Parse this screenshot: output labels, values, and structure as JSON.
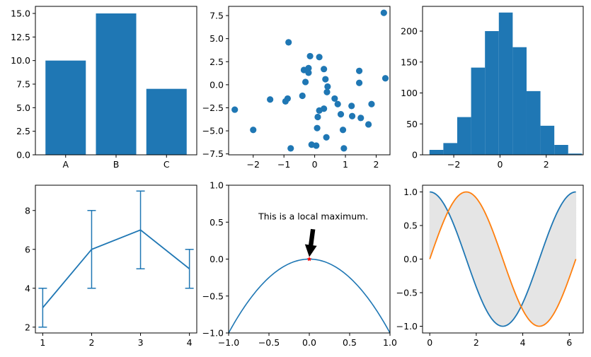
{
  "colors": {
    "blue": "#1f77b4",
    "orange": "#ff7f0e",
    "fill_gray": "#e5e5e5",
    "red": "#ff0000",
    "black": "#000000"
  },
  "chart_data": [
    {
      "type": "bar",
      "categories": [
        "A",
        "B",
        "C"
      ],
      "values": [
        10,
        15,
        7
      ],
      "ylim": [
        0,
        15.75
      ],
      "yticks": [
        "0.0",
        "2.5",
        "5.0",
        "7.5",
        "10.0",
        "12.5",
        "15.0"
      ]
    },
    {
      "type": "scatter",
      "xlim": [
        -2.8,
        2.45
      ],
      "ylim": [
        -7.6,
        8.5
      ],
      "xticks": [
        "−2",
        "−1",
        "0",
        "1",
        "2"
      ],
      "yticks": [
        "−7.5",
        "−5.0",
        "−2.5",
        "0.0",
        "2.5",
        "5.0",
        "7.5"
      ],
      "points": [
        [
          -2.6,
          -2.7
        ],
        [
          -2.0,
          -4.9
        ],
        [
          -1.45,
          -1.6
        ],
        [
          -0.95,
          -1.8
        ],
        [
          -0.88,
          -1.5
        ],
        [
          -0.85,
          4.6
        ],
        [
          -0.78,
          -6.9
        ],
        [
          -0.4,
          -1.2
        ],
        [
          -0.35,
          1.6
        ],
        [
          -0.3,
          0.3
        ],
        [
          -0.2,
          1.3
        ],
        [
          -0.2,
          1.8
        ],
        [
          -0.15,
          3.1
        ],
        [
          -0.1,
          -6.5
        ],
        [
          0.05,
          -6.6
        ],
        [
          0.08,
          -4.7
        ],
        [
          0.1,
          -3.5
        ],
        [
          0.15,
          3.0
        ],
        [
          0.15,
          -2.8
        ],
        [
          0.3,
          -2.6
        ],
        [
          0.3,
          1.7
        ],
        [
          0.35,
          0.6
        ],
        [
          0.38,
          -5.7
        ],
        [
          0.4,
          -0.8
        ],
        [
          0.42,
          -0.2
        ],
        [
          0.65,
          -1.5
        ],
        [
          0.75,
          -2.1
        ],
        [
          0.85,
          -3.2
        ],
        [
          0.92,
          -4.9
        ],
        [
          0.95,
          -6.9
        ],
        [
          1.2,
          -2.3
        ],
        [
          1.22,
          -3.4
        ],
        [
          1.45,
          1.5
        ],
        [
          1.45,
          0.2
        ],
        [
          1.5,
          -3.6
        ],
        [
          1.75,
          -4.3
        ],
        [
          1.85,
          -2.1
        ],
        [
          2.25,
          7.8
        ],
        [
          2.3,
          0.7
        ]
      ]
    },
    {
      "type": "histogram",
      "xlim": [
        -3.35,
        3.6
      ],
      "ylim": [
        0,
        240
      ],
      "xticks": [
        "−2",
        "0",
        "2"
      ],
      "yticks": [
        "0",
        "50",
        "100",
        "150",
        "200"
      ],
      "bins": [
        [
          -3.05,
          -2.45,
          8
        ],
        [
          -2.45,
          -1.85,
          19
        ],
        [
          -1.85,
          -1.25,
          61
        ],
        [
          -1.25,
          -0.65,
          141
        ],
        [
          -0.65,
          -0.05,
          200
        ],
        [
          -0.05,
          0.55,
          230
        ],
        [
          0.55,
          1.15,
          174
        ],
        [
          1.15,
          1.75,
          103
        ],
        [
          1.75,
          2.35,
          47
        ],
        [
          2.35,
          2.95,
          16
        ],
        [
          2.95,
          3.55,
          2
        ]
      ]
    },
    {
      "type": "line",
      "subtype": "errorbar",
      "x": [
        1,
        2,
        3,
        4
      ],
      "y": [
        3,
        6,
        7,
        5
      ],
      "yerr": [
        1,
        2,
        2,
        1
      ],
      "xlim": [
        0.85,
        4.15
      ],
      "ylim": [
        1.7,
        9.3
      ],
      "xticks": [
        "1",
        "2",
        "3",
        "4"
      ],
      "yticks": [
        "2",
        "4",
        "6",
        "8"
      ]
    },
    {
      "type": "line",
      "function": "y = -x^2",
      "x_range": [
        -1,
        1
      ],
      "xlim": [
        -1,
        1
      ],
      "ylim": [
        -1,
        1
      ],
      "xticks": [
        "−1.0",
        "−0.5",
        "0.0",
        "0.5",
        "1.0"
      ],
      "yticks": [
        "−1.0",
        "−0.5",
        "0.0",
        "0.5",
        "1.0"
      ],
      "marker_point": [
        0,
        0
      ],
      "annotation": {
        "text": "This is a local maximum.",
        "xy": [
          0,
          0
        ],
        "xytext": [
          0.05,
          0.5
        ]
      }
    },
    {
      "type": "area",
      "x_range": [
        0,
        6.2832
      ],
      "xlim": [
        -0.31,
        6.6
      ],
      "ylim": [
        -1.1,
        1.1
      ],
      "xticks": [
        "0",
        "2",
        "4",
        "6"
      ],
      "yticks": [
        "−1.0",
        "−0.5",
        "0.0",
        "0.5",
        "1.0"
      ],
      "series": [
        {
          "function": "cos(x)",
          "color": "#1f77b4"
        },
        {
          "function": "sin(x)",
          "color": "#ff7f0e"
        }
      ],
      "fill_between": true
    }
  ]
}
